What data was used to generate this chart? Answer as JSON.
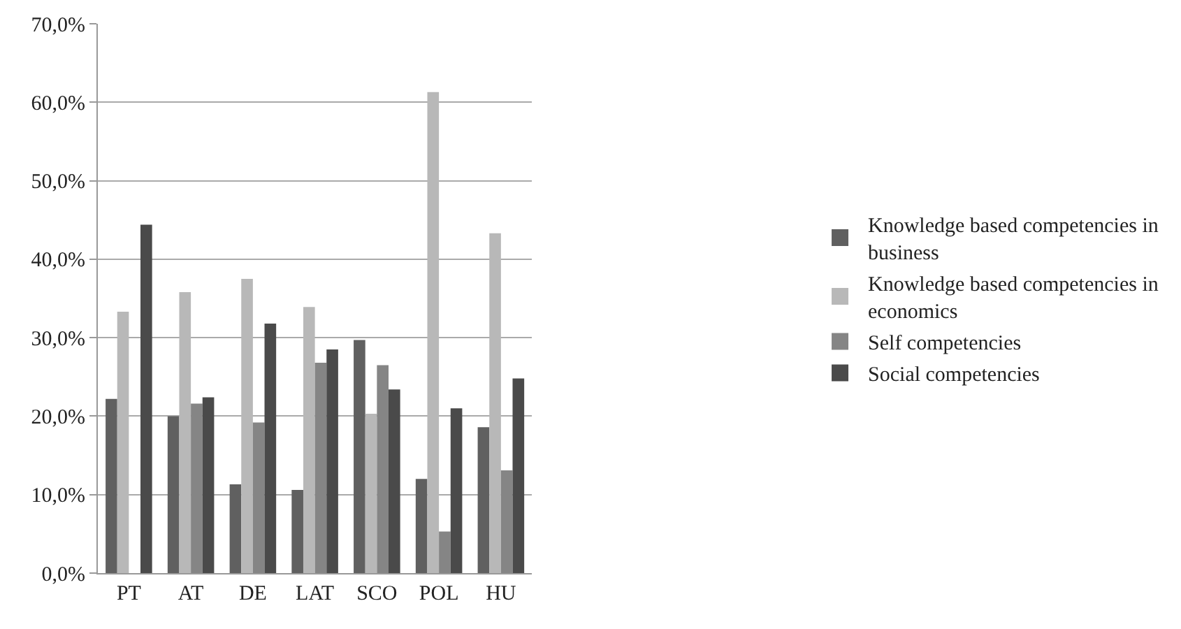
{
  "chart_data": {
    "type": "bar",
    "categories": [
      "PT",
      "AT",
      "DE",
      "LAT",
      "SCO",
      "POL",
      "HU"
    ],
    "series": [
      {
        "name": "Knowledge based competencies in business",
        "color": "#606060",
        "values": [
          22.2,
          20.0,
          11.3,
          10.6,
          29.7,
          12.0,
          18.6
        ]
      },
      {
        "name": "Knowledge based competencies in economics",
        "color": "#b8b8b8",
        "values": [
          33.3,
          35.8,
          37.5,
          33.9,
          20.3,
          61.3,
          43.3
        ]
      },
      {
        "name": "Self competencies",
        "color": "#858585",
        "values": [
          null,
          21.6,
          19.2,
          26.8,
          26.5,
          5.3,
          13.1
        ]
      },
      {
        "name": "Social competencies",
        "color": "#4a4a4a",
        "values": [
          44.4,
          22.4,
          31.8,
          28.5,
          23.4,
          21.0,
          24.8
        ]
      }
    ],
    "ylim": [
      0,
      70
    ],
    "yticks": [
      {
        "value": 0,
        "label": "0,0%"
      },
      {
        "value": 10,
        "label": "10,0%"
      },
      {
        "value": 20,
        "label": "20,0%"
      },
      {
        "value": 30,
        "label": "30,0%"
      },
      {
        "value": 40,
        "label": "40,0%"
      },
      {
        "value": 50,
        "label": "50,0%"
      },
      {
        "value": 60,
        "label": "60,0%"
      },
      {
        "value": 70,
        "label": "70,0%"
      }
    ],
    "grid": "y",
    "legend": "right"
  }
}
